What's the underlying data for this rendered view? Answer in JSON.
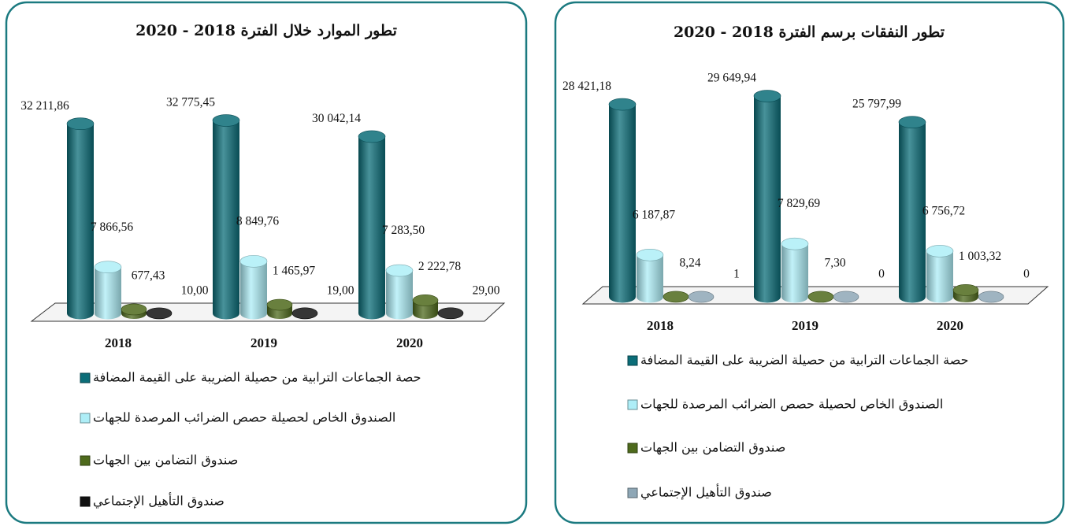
{
  "chart_data": [
    {
      "type": "bar",
      "title": "تطور الموارد خلال الفترة 2018 - 2020",
      "categories": [
        "2018",
        "2019",
        "2020"
      ],
      "series": [
        {
          "name": "حصة الجماعات الترابية من حصيلة الضريبة على القيمة المضافة",
          "color": "#0b6d78",
          "values": [
            32211.86,
            32775.45,
            30042.14
          ],
          "value_labels": [
            "32 211,86",
            "32 775,45",
            "30 042,14"
          ]
        },
        {
          "name": "الصندوق الخاص لحصيلة حصص الضرائب المرصدة للجهات",
          "color": "#aeeef7",
          "values": [
            7866.56,
            8849.76,
            7283.5
          ],
          "value_labels": [
            "7 866,56",
            "8 849,76",
            "7 283,50"
          ]
        },
        {
          "name": "صندوق التضامن بين الجهات",
          "color": "#4e6a1c",
          "values": [
            677.43,
            1465.97,
            2222.78
          ],
          "value_labels": [
            "677,43",
            "1 465,97",
            "2 222,78"
          ]
        },
        {
          "name": "صندوق التأهيل الإجتماعي",
          "color": "#111111",
          "values": [
            10.0,
            19.0,
            29.0
          ],
          "value_labels": [
            "10,00",
            "19,00",
            "29,00"
          ]
        }
      ]
    },
    {
      "type": "bar",
      "title": "تطور النفقات برسم الفترة  2018 - 2020",
      "categories": [
        "2018",
        "2019",
        "2020"
      ],
      "series": [
        {
          "name": "حصة الجماعات الترابية من حصيلة الضريبة على القيمة المضافة",
          "color": "#0b6d78",
          "values": [
            28421.18,
            29649.94,
            25797.99
          ],
          "value_labels": [
            "28 421,18",
            "29 649,94",
            "25 797,99"
          ]
        },
        {
          "name": "الصندوق الخاص لحصيلة حصص الضرائب المرصدة للجهات",
          "color": "#aeeef7",
          "values": [
            6187.87,
            7829.69,
            6756.72
          ],
          "value_labels": [
            "6 187,87",
            "7 829,69",
            "6 756,72"
          ]
        },
        {
          "name": "صندوق التضامن بين الجهات",
          "color": "#4e6a1c",
          "values": [
            8.24,
            7.3,
            1003.32
          ],
          "value_labels": [
            "8,24",
            "7,30",
            "1 003,32"
          ]
        },
        {
          "name": "صندوق التأهيل الإجتماعي",
          "color": "#8ea7b6",
          "values": [
            1,
            0,
            0
          ],
          "value_labels": [
            "1",
            "0",
            "0"
          ]
        }
      ]
    }
  ]
}
